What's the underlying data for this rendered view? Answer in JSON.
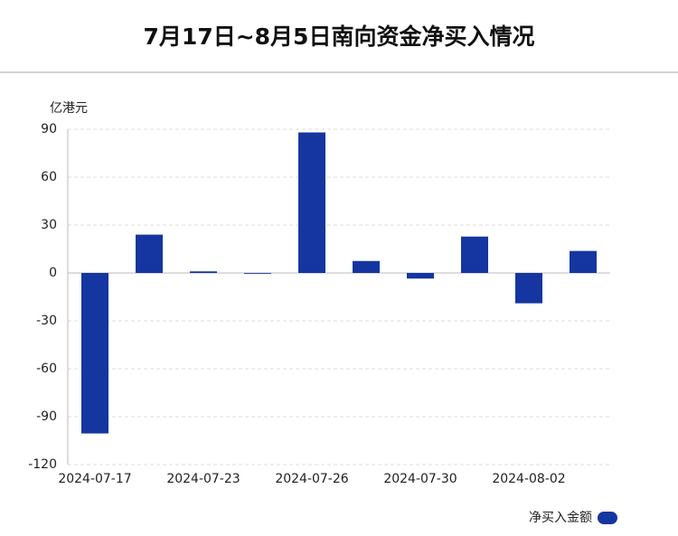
{
  "chart_data": {
    "type": "bar",
    "title": "7月17日~8月5日南向资金净买入情况",
    "y_unit": "亿港元",
    "categories": [
      "2024-07-17",
      null,
      "2024-07-23",
      null,
      "2024-07-26",
      null,
      "2024-07-30",
      null,
      "2024-08-02",
      null
    ],
    "series": [
      {
        "name": "净买入金额",
        "color": "#1536a0",
        "values": [
          -100.5,
          24,
          1,
          -0.5,
          88,
          7.5,
          -3.5,
          22.8,
          -19,
          13.8
        ]
      }
    ],
    "ylim": [
      -120,
      90
    ],
    "yticks": [
      -120,
      -90,
      -60,
      -30,
      0,
      30,
      60,
      90
    ],
    "grid": true,
    "legend": "bottom-right"
  }
}
